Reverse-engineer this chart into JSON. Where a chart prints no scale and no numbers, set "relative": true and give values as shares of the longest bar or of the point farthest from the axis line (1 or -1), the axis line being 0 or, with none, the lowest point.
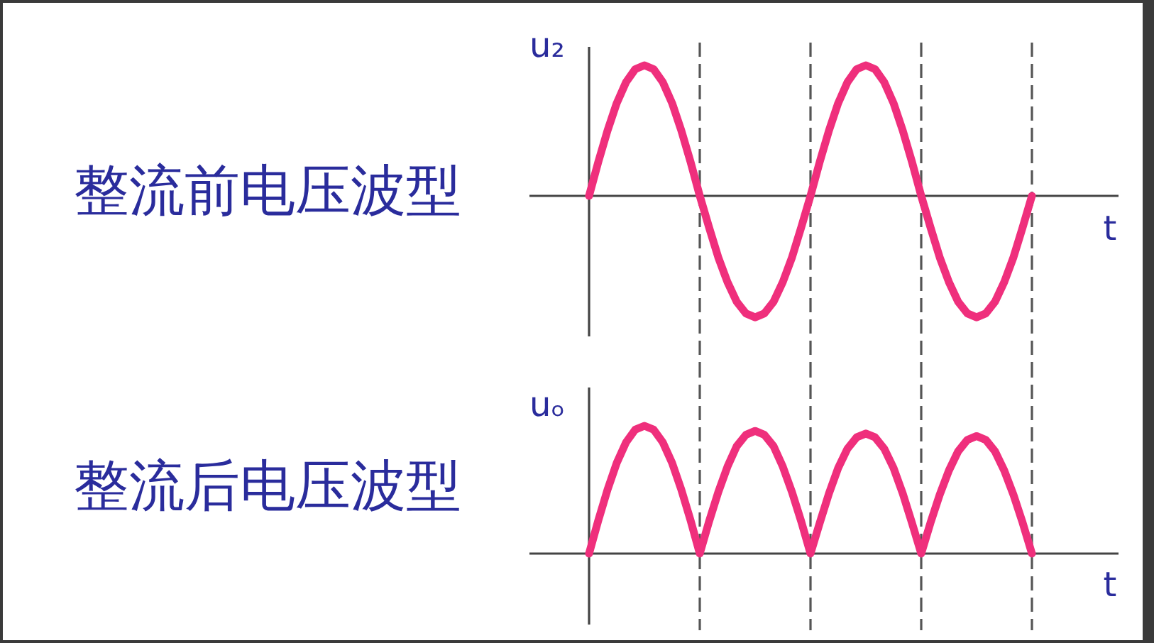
{
  "chart_data": [
    {
      "type": "line",
      "title": "整流前电压波型",
      "ylabel": "u₂",
      "xlabel": "t",
      "relative": true,
      "grid": "x",
      "categories": [
        null,
        null,
        null,
        null,
        null,
        null,
        null,
        null,
        null,
        null,
        null,
        null,
        null,
        null,
        null,
        null,
        null,
        null,
        null,
        null,
        null,
        null,
        null,
        null,
        null,
        null,
        null,
        null,
        null,
        null,
        null,
        null,
        null,
        null,
        null,
        null,
        null,
        null,
        null,
        null,
        null,
        null,
        null,
        null,
        null,
        null,
        null,
        null,
        null
      ],
      "series": [
        {
          "color": "#ef2f7c",
          "values": [
            0,
            0.26,
            0.5,
            0.71,
            0.87,
            0.97,
            1,
            0.97,
            0.87,
            0.71,
            0.5,
            0.26,
            0,
            -0.24,
            -0.47,
            -0.66,
            -0.81,
            -0.9,
            -0.93,
            -0.9,
            -0.81,
            -0.66,
            -0.47,
            -0.24,
            0,
            0.26,
            0.5,
            0.71,
            0.87,
            0.97,
            1,
            0.97,
            0.87,
            0.71,
            0.5,
            0.26,
            0,
            -0.24,
            -0.47,
            -0.66,
            -0.81,
            -0.9,
            -0.93,
            -0.9,
            -0.81,
            -0.66,
            -0.47,
            -0.24,
            0
          ]
        }
      ]
    },
    {
      "type": "line",
      "title": "整流后电压波型",
      "ylabel": "uₒ",
      "xlabel": "t",
      "relative": true,
      "grid": "x",
      "categories": [
        null,
        null,
        null,
        null,
        null,
        null,
        null,
        null,
        null,
        null,
        null,
        null,
        null,
        null,
        null,
        null,
        null,
        null,
        null,
        null,
        null,
        null,
        null,
        null,
        null,
        null,
        null,
        null,
        null,
        null,
        null,
        null,
        null,
        null,
        null,
        null,
        null,
        null,
        null,
        null,
        null,
        null,
        null,
        null,
        null,
        null,
        null,
        null,
        null
      ],
      "series": [
        {
          "color": "#ef2f7c",
          "values": [
            0,
            0.26,
            0.5,
            0.71,
            0.87,
            0.97,
            1,
            0.97,
            0.87,
            0.71,
            0.5,
            0.26,
            0,
            0.25,
            0.48,
            0.68,
            0.84,
            0.93,
            0.96,
            0.93,
            0.84,
            0.68,
            0.48,
            0.25,
            0,
            0.24,
            0.47,
            0.67,
            0.82,
            0.91,
            0.94,
            0.91,
            0.82,
            0.67,
            0.47,
            0.24,
            0,
            0.24,
            0.46,
            0.65,
            0.8,
            0.89,
            0.92,
            0.89,
            0.8,
            0.65,
            0.46,
            0.24,
            0
          ]
        }
      ]
    }
  ]
}
